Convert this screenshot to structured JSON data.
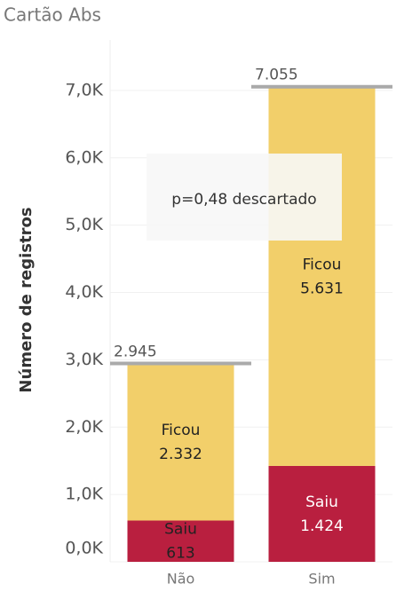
{
  "chart_data": {
    "type": "stacked_bar",
    "title": "Cartão Abs",
    "y_label": "Número de registros",
    "categories": [
      "Não",
      "Sim"
    ],
    "series": [
      {
        "name": "Saiu",
        "color": "#b91f3f",
        "values": [
          613,
          1424
        ],
        "value_labels": [
          "613",
          "1.424"
        ]
      },
      {
        "name": "Ficou",
        "color": "#f2cf6a",
        "values": [
          2332,
          5631
        ],
        "value_labels": [
          "2.332",
          "5.631"
        ]
      }
    ],
    "totals": {
      "values": [
        2945,
        7055
      ],
      "value_labels": [
        "2.945",
        "7.055"
      ]
    },
    "annotation": "p=0,48 descartado",
    "ylim": [
      0,
      7750
    ],
    "yticks": [
      {
        "value": 0,
        "label": "0,0K"
      },
      {
        "value": 1000,
        "label": "1,0K"
      },
      {
        "value": 2000,
        "label": "2,0K"
      },
      {
        "value": 3000,
        "label": "3,0K"
      },
      {
        "value": 4000,
        "label": "4,0K"
      },
      {
        "value": 5000,
        "label": "5,0K"
      },
      {
        "value": 6000,
        "label": "6,0K"
      },
      {
        "value": 7000,
        "label": "7,0K"
      }
    ],
    "grid": true
  }
}
